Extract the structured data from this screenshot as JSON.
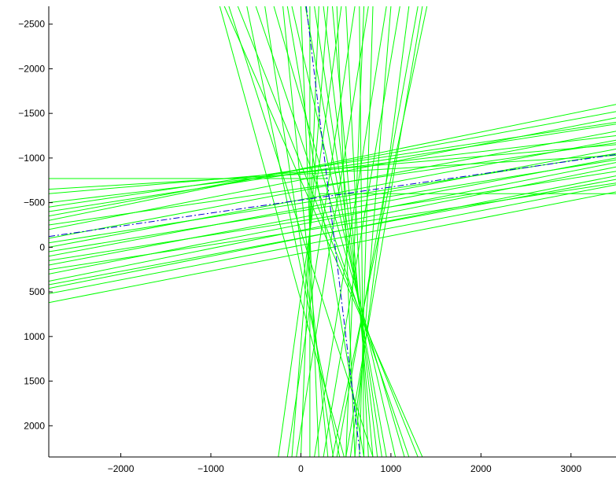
{
  "chart_data": {
    "type": "line",
    "title": "",
    "xlabel": "",
    "ylabel": "",
    "xlim": [
      -2800,
      3500
    ],
    "ylim": [
      -2700,
      2350
    ],
    "y_axis_reversed": true,
    "grid": false,
    "legend": "none",
    "x_ticks": [
      -2000,
      -1000,
      0,
      1000,
      2000,
      3000
    ],
    "y_ticks": [
      -2500,
      -2000,
      -1500,
      -1000,
      -500,
      0,
      500,
      1000,
      1500,
      2000
    ],
    "x_tick_labels": [
      "−2000",
      "−1000",
      "0",
      "1000",
      "2000",
      "3000"
    ],
    "y_tick_labels": [
      "−2500",
      "−2000",
      "−1500",
      "−1000",
      "−500",
      "0",
      "500",
      "1000",
      "1500",
      "2000"
    ],
    "colors": {
      "lines": "#00ff00",
      "reference": "#0000cc",
      "axes": "#000000"
    },
    "series": [
      {
        "style": "solid",
        "color": "#00ff00",
        "lines": [
          [
            [
              -2800,
              -770
            ],
            [
              300,
              -770
            ]
          ],
          [
            [
              -2800,
              -650
            ],
            [
              3500,
              -1030
            ]
          ],
          [
            [
              -2800,
              -600
            ],
            [
              3500,
              -1150
            ]
          ],
          [
            [
              -2800,
              -500
            ],
            [
              3500,
              -1250
            ]
          ],
          [
            [
              -2800,
              -400
            ],
            [
              3500,
              -1380
            ]
          ],
          [
            [
              -2800,
              -300
            ],
            [
              3500,
              -1600
            ]
          ],
          [
            [
              -2800,
              -200
            ],
            [
              3500,
              -1450
            ]
          ],
          [
            [
              -2800,
              -100
            ],
            [
              3500,
              -1300
            ]
          ],
          [
            [
              -2800,
              0
            ],
            [
              3500,
              -1200
            ]
          ],
          [
            [
              -2800,
              100
            ],
            [
              3500,
              -1100
            ]
          ],
          [
            [
              -2800,
              200
            ],
            [
              3500,
              -1000
            ]
          ],
          [
            [
              -2800,
              300
            ],
            [
              3500,
              -950
            ]
          ],
          [
            [
              -2800,
              380
            ],
            [
              3500,
              -900
            ]
          ],
          [
            [
              -2800,
              460
            ],
            [
              3500,
              -800
            ]
          ],
          [
            [
              -2800,
              520
            ],
            [
              3500,
              -700
            ]
          ],
          [
            [
              -2800,
              620
            ],
            [
              3500,
              -620
            ]
          ],
          [
            [
              -2800,
              250
            ],
            [
              3500,
              -720
            ]
          ],
          [
            [
              -2800,
              150
            ],
            [
              3500,
              -850
            ]
          ],
          [
            [
              -2800,
              -50
            ],
            [
              3500,
              -1050
            ]
          ],
          [
            [
              -2800,
              -250
            ],
            [
              3500,
              -1170
            ]
          ],
          [
            [
              200,
              -600
            ],
            [
              3500,
              -600
            ]
          ],
          [
            [
              -2800,
              -450
            ],
            [
              3500,
              -1400
            ]
          ],
          [
            [
              -2800,
              -350
            ],
            [
              3500,
              -1520
            ]
          ],
          [
            [
              -2800,
              50
            ],
            [
              3500,
              -980
            ]
          ],
          [
            [
              -2800,
              420
            ],
            [
              3500,
              -760
            ]
          ],
          [
            [
              -900,
              -2700
            ],
            [
              480,
              2350
            ]
          ],
          [
            [
              -600,
              -2700
            ],
            [
              430,
              2350
            ]
          ],
          [
            [
              -400,
              -2700
            ],
            [
              360,
              2350
            ]
          ],
          [
            [
              -200,
              -2700
            ],
            [
              300,
              2350
            ]
          ],
          [
            [
              0,
              -2700
            ],
            [
              200,
              2350
            ]
          ],
          [
            [
              100,
              -2700
            ],
            [
              100,
              2350
            ]
          ],
          [
            [
              200,
              -2700
            ],
            [
              0,
              2350
            ]
          ],
          [
            [
              300,
              -2700
            ],
            [
              -100,
              2350
            ]
          ],
          [
            [
              450,
              -2700
            ],
            [
              -250,
              2350
            ]
          ],
          [
            [
              600,
              -2700
            ],
            [
              -150,
              2350
            ]
          ],
          [
            [
              750,
              -2700
            ],
            [
              -50,
              2350
            ]
          ],
          [
            [
              950,
              -2700
            ],
            [
              150,
              2350
            ]
          ],
          [
            [
              1100,
              -2700
            ],
            [
              250,
              2350
            ]
          ],
          [
            [
              1400,
              -2700
            ],
            [
              350,
              2350
            ]
          ],
          [
            [
              -850,
              -2700
            ],
            [
              1350,
              2350
            ]
          ],
          [
            [
              -700,
              -2700
            ],
            [
              1300,
              2350
            ]
          ],
          [
            [
              -500,
              -2700
            ],
            [
              1200,
              2350
            ]
          ],
          [
            [
              -300,
              -2700
            ],
            [
              1150,
              2350
            ]
          ],
          [
            [
              -100,
              -2700
            ],
            [
              1050,
              2350
            ]
          ],
          [
            [
              50,
              -2700
            ],
            [
              950,
              2350
            ]
          ],
          [
            [
              150,
              -2700
            ],
            [
              900,
              2350
            ]
          ],
          [
            [
              250,
              -2700
            ],
            [
              850,
              2350
            ]
          ],
          [
            [
              350,
              -2700
            ],
            [
              800,
              2350
            ]
          ],
          [
            [
              500,
              -2700
            ],
            [
              750,
              2350
            ]
          ],
          [
            [
              650,
              -2700
            ],
            [
              700,
              2350
            ]
          ],
          [
            [
              800,
              -2700
            ],
            [
              650,
              2350
            ]
          ],
          [
            [
              1000,
              -2700
            ],
            [
              600,
              2350
            ]
          ],
          [
            [
              1200,
              -2700
            ],
            [
              550,
              2350
            ]
          ],
          [
            [
              1350,
              -2700
            ],
            [
              500,
              2350
            ]
          ],
          [
            [
              -800,
              -2700
            ],
            [
              800,
              2350
            ]
          ],
          [
            [
              -150,
              -2700
            ],
            [
              700,
              2350
            ]
          ],
          [
            [
              400,
              -2700
            ],
            [
              600,
              2350
            ]
          ],
          [
            [
              700,
              -2700
            ],
            [
              500,
              2350
            ]
          ],
          [
            [
              1300,
              -2700
            ],
            [
              400,
              2350
            ]
          ]
        ]
      },
      {
        "style": "dash-dot",
        "color": "#0000cc",
        "lines": [
          [
            [
              -2800,
              -120
            ],
            [
              3500,
              -1040
            ]
          ],
          [
            [
              60,
              -2700
            ],
            [
              660,
              2350
            ]
          ]
        ]
      }
    ]
  }
}
